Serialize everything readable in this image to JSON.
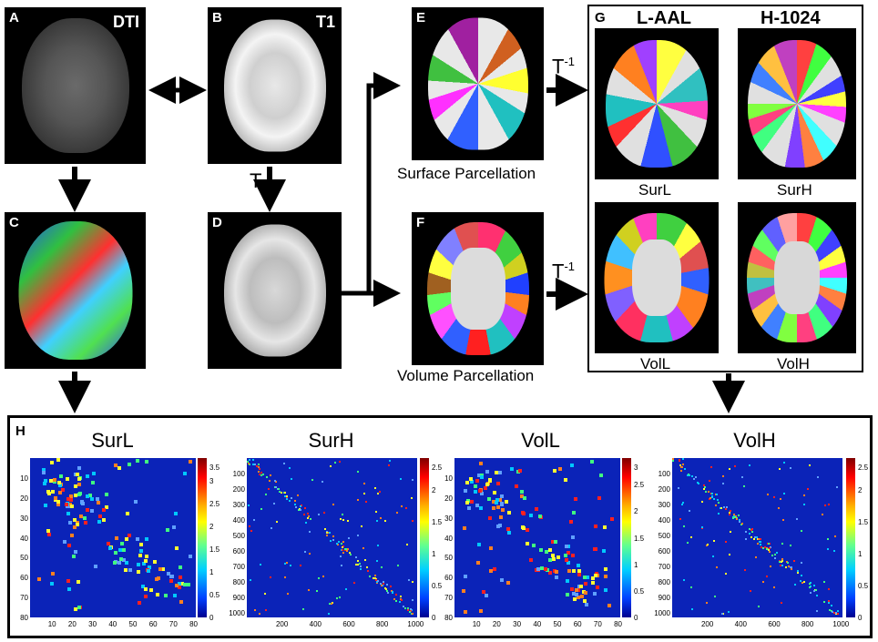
{
  "panels": {
    "A": {
      "label": "A",
      "tag": "DTI"
    },
    "B": {
      "label": "B",
      "tag": "T1"
    },
    "C": {
      "label": "C"
    },
    "D": {
      "label": "D"
    },
    "E": {
      "label": "E"
    },
    "F": {
      "label": "F"
    },
    "G": {
      "label": "G"
    },
    "H": {
      "label": "H"
    }
  },
  "captions": {
    "surface": "Surface Parcellation",
    "volume": "Volume Parcellation"
  },
  "transforms": {
    "t": "T",
    "tinv": "T",
    "tinv_sup": "-1"
  },
  "group_g": {
    "col1": "L-AAL",
    "col2": "H-1024",
    "surl": "SurL",
    "surh": "SurH",
    "voll": "VolL",
    "volh": "VolH"
  },
  "matrices": [
    {
      "title": "SurL",
      "yticks": [
        "10",
        "20",
        "30",
        "40",
        "50",
        "60",
        "70",
        "80"
      ],
      "xticks": [
        "10",
        "20",
        "30",
        "40",
        "50",
        "60",
        "70",
        "80"
      ],
      "cticks": [
        "3.5",
        "3",
        "2.5",
        "2",
        "1.5",
        "1",
        "0.5",
        "0"
      ]
    },
    {
      "title": "SurH",
      "yticks": [
        "100",
        "200",
        "300",
        "400",
        "500",
        "600",
        "700",
        "800",
        "900",
        "1000"
      ],
      "xticks": [
        "200",
        "400",
        "600",
        "800",
        "1000"
      ],
      "cticks": [
        "2.5",
        "2",
        "1.5",
        "1",
        "0.5",
        "0"
      ]
    },
    {
      "title": "VolL",
      "yticks": [
        "10",
        "20",
        "30",
        "40",
        "50",
        "60",
        "70",
        "80"
      ],
      "xticks": [
        "10",
        "20",
        "30",
        "40",
        "50",
        "60",
        "70",
        "80"
      ],
      "cticks": [
        "3",
        "2.5",
        "2",
        "1.5",
        "1",
        "0.5",
        "0"
      ]
    },
    {
      "title": "VolH",
      "yticks": [
        "100",
        "200",
        "300",
        "400",
        "500",
        "600",
        "700",
        "800",
        "900",
        "1000"
      ],
      "xticks": [
        "200",
        "400",
        "600",
        "800",
        "1000"
      ],
      "cticks": [
        "2.5",
        "2",
        "1.5",
        "1",
        "0.5",
        "0"
      ]
    }
  ]
}
